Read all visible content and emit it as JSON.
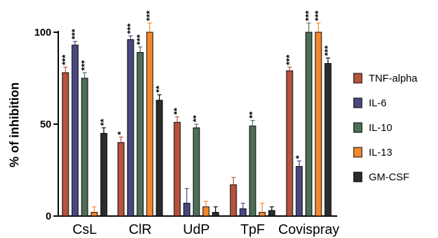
{
  "chart_data": {
    "type": "bar",
    "ylabel": "% of inhibition",
    "ylim": [
      0,
      100
    ],
    "yticks": [
      "0",
      "50",
      "100"
    ],
    "categories": [
      "CsL",
      "ClR",
      "UdP",
      "TpF",
      "Covispray"
    ],
    "legend_position": "right",
    "series": [
      {
        "name": "TNF-alpha",
        "color": "#B5533C",
        "values": [
          78,
          40,
          51,
          17,
          79
        ],
        "errors": [
          3,
          3,
          3,
          4,
          2
        ],
        "sig": [
          "***",
          "*",
          "**",
          "",
          "***"
        ]
      },
      {
        "name": "IL-6",
        "color": "#4A4880",
        "values": [
          93,
          96,
          7,
          4,
          27
        ],
        "errors": [
          2,
          2,
          8,
          3,
          3
        ],
        "sig": [
          "***",
          "***",
          "",
          "",
          "*"
        ]
      },
      {
        "name": "IL-10",
        "color": "#4D6E57",
        "values": [
          75,
          89,
          48,
          49,
          100
        ],
        "errors": [
          3,
          3,
          2,
          3,
          5
        ],
        "sig": [
          "***",
          "***",
          "**",
          "**",
          "***"
        ]
      },
      {
        "name": "IL-13",
        "color": "#F3872B",
        "values": [
          2,
          100,
          5,
          2,
          100
        ],
        "errors": [
          3,
          5,
          3,
          5,
          5
        ],
        "sig": [
          "",
          "***",
          "",
          "",
          "***"
        ]
      },
      {
        "name": "GM-CSF",
        "color": "#2C2C2C",
        "values": [
          45,
          63,
          2,
          3,
          83
        ],
        "errors": [
          3,
          3,
          3,
          2,
          3
        ],
        "sig": [
          "**",
          "**",
          "",
          "",
          "***"
        ]
      }
    ]
  }
}
